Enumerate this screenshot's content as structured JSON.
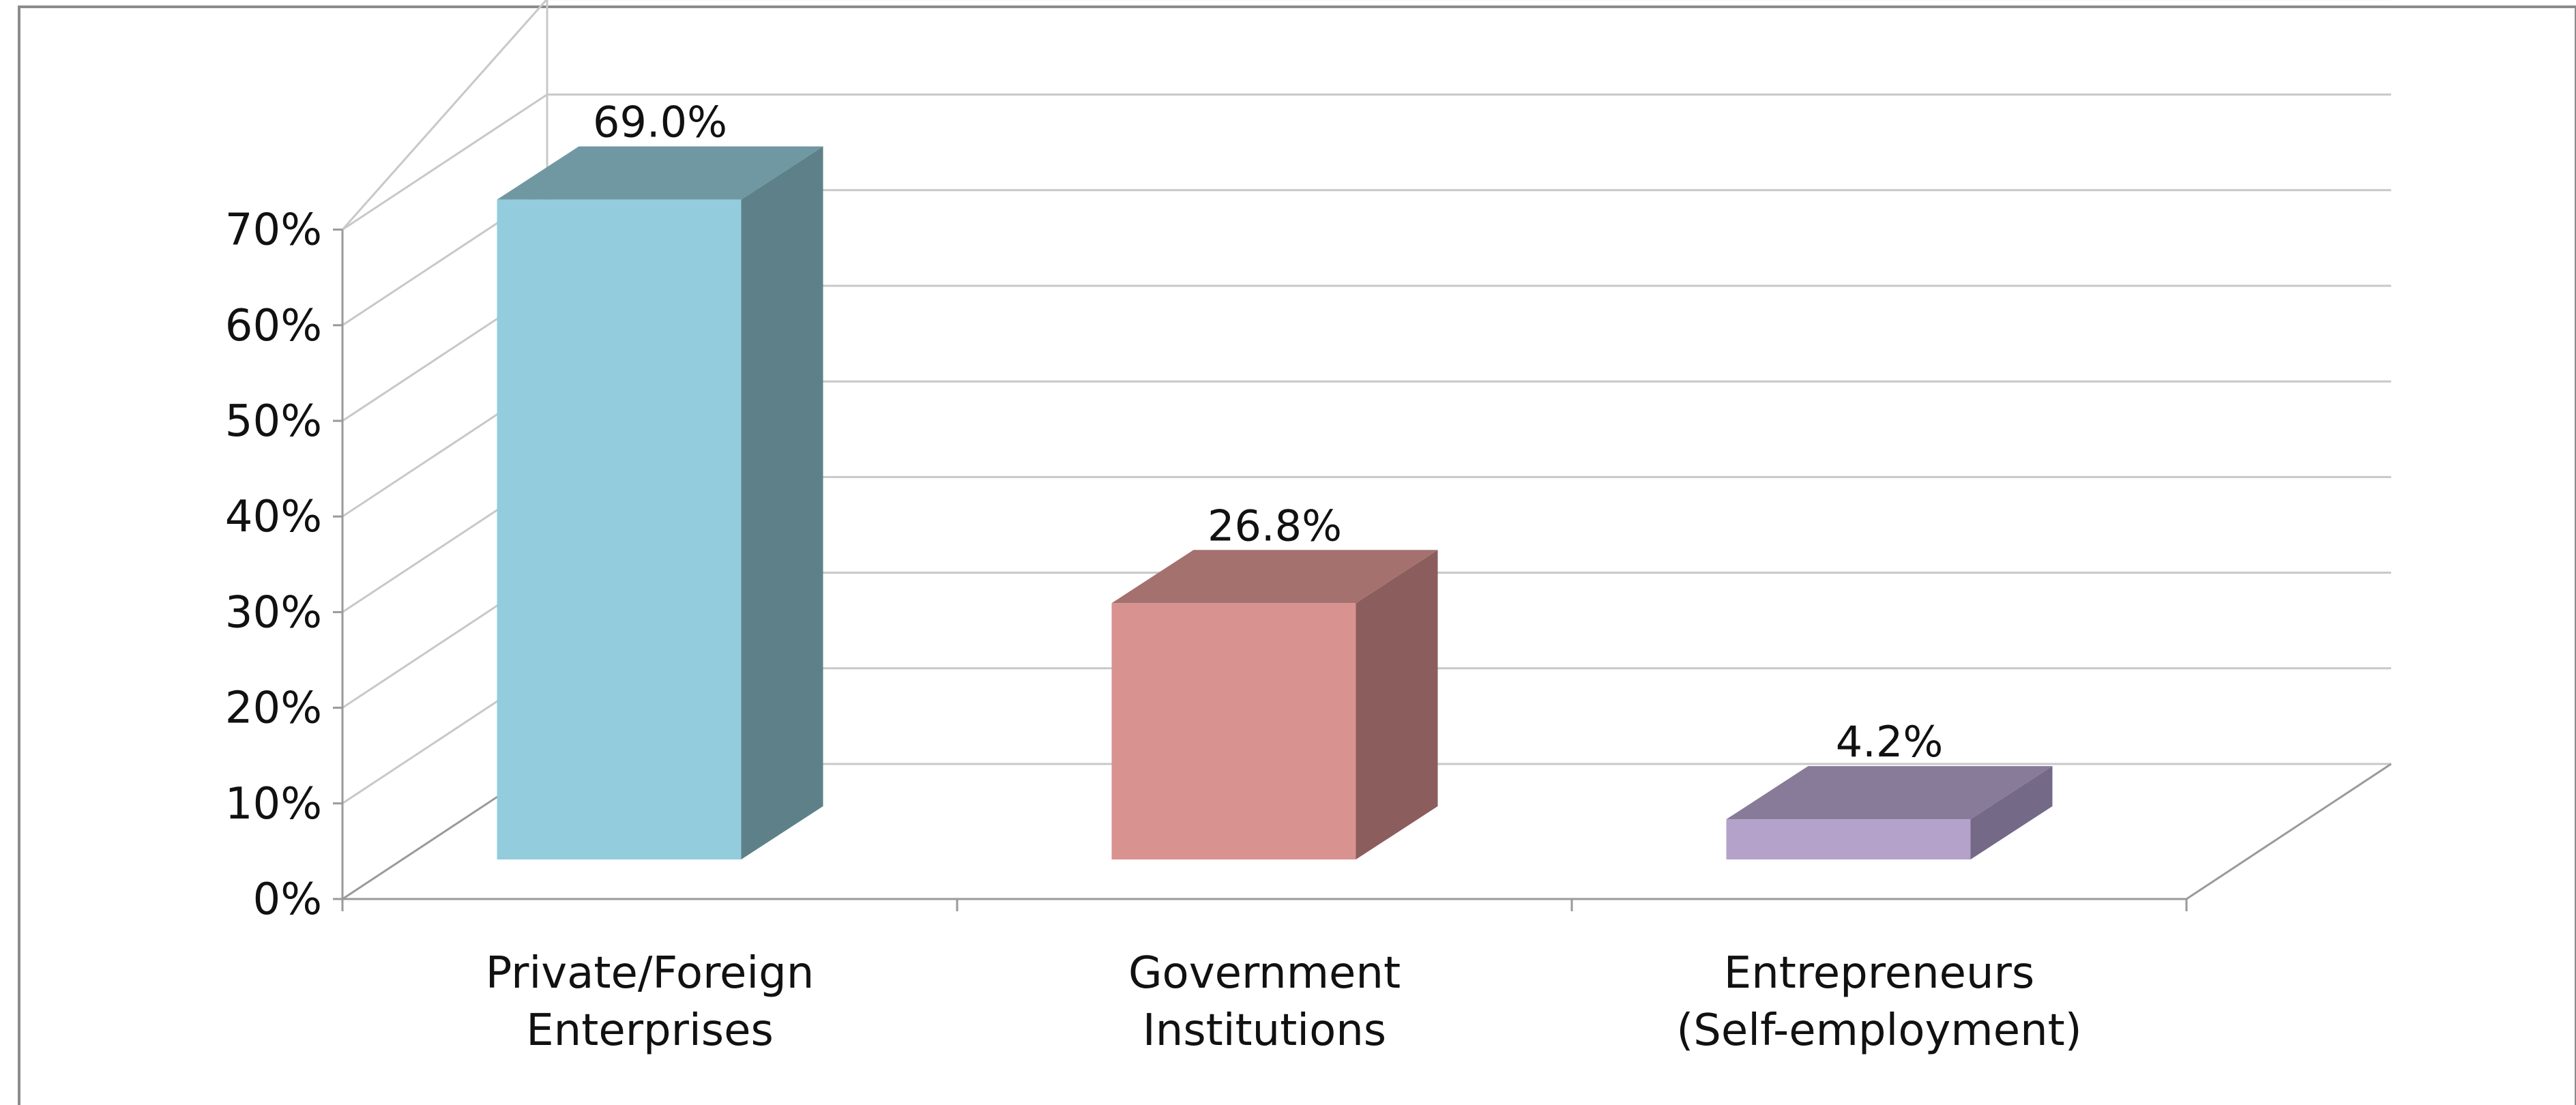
{
  "chart_data": {
    "type": "bar",
    "style": "3d-column",
    "title": "",
    "xlabel": "",
    "ylabel": "",
    "categories": [
      [
        "Private/Foreign",
        "Enterprises"
      ],
      [
        "Government",
        "Institutions"
      ],
      [
        "Entrepreneurs",
        "(Self-employment)"
      ]
    ],
    "values": [
      69.0,
      26.8,
      4.2
    ],
    "data_labels": [
      "69.0%",
      "26.8%",
      "4.2%"
    ],
    "ylim": [
      0,
      70
    ],
    "yticks": [
      "0%",
      "10%",
      "20%",
      "30%",
      "40%",
      "50%",
      "60%",
      "70%"
    ],
    "grid": true,
    "legend": "none",
    "colors": {
      "bars": [
        {
          "front": "#93CCDD",
          "side": "#5E8189",
          "top": "#7098A3"
        },
        {
          "front": "#D89290",
          "side": "#8B5D5C",
          "top": "#A4716F"
        },
        {
          "front": "#B4A2CA",
          "side": "#756988",
          "top": "#877B99"
        }
      ]
    }
  }
}
